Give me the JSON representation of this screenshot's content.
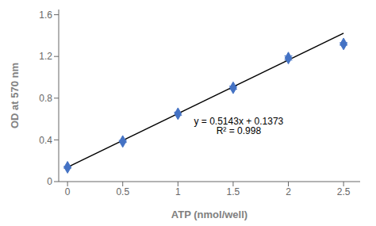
{
  "chart_data": {
    "type": "scatter",
    "x_label": "ATP (nmol/well)",
    "y_label": "OD at 570 nm",
    "xlim": [
      -0.08,
      2.65
    ],
    "ylim": [
      0,
      1.65
    ],
    "xticks": [
      0,
      0.5,
      1.0,
      1.5,
      2.0,
      2.5
    ],
    "yticks": [
      0,
      0.4,
      0.8,
      1.2,
      1.6
    ],
    "grid": false,
    "series": [
      {
        "type": "line",
        "x": [
          0,
          2.5
        ],
        "values": [
          0.1373,
          1.42305
        ],
        "color": "#000000"
      },
      {
        "type": "scatter",
        "x": [
          0,
          0.5,
          1.0,
          1.5,
          2.0,
          2.5
        ],
        "values": [
          0.137,
          0.385,
          0.651,
          0.9,
          1.185,
          1.32
        ],
        "yerr": [
          0.008,
          0.01,
          0.015,
          0.015,
          0.02,
          0.012
        ],
        "color": "#4472c4",
        "marker": "diamond"
      }
    ],
    "annotations": [
      {
        "text": "y = 0.5143x + 0.1373",
        "x": 1.55,
        "y": 0.58
      },
      {
        "text": "R² = 0.998",
        "x": 1.55,
        "y": 0.49
      }
    ]
  }
}
